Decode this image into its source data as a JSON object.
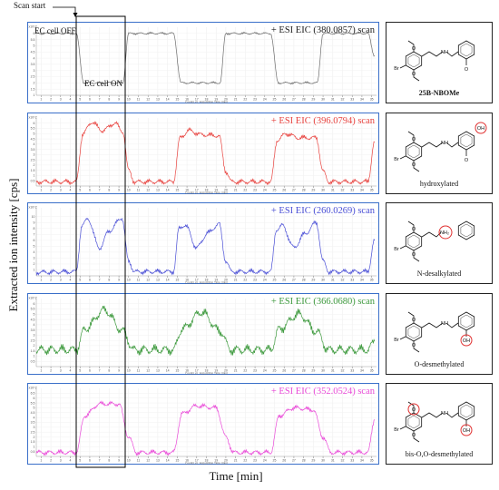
{
  "figure": {
    "ylabel": "Extracted ion intensity [cps]",
    "xlabel": "Time [min]",
    "scan_start_label": "Scan start",
    "ec_off_label": "EC cell OFF",
    "ec_on_label": "EC cell ON",
    "tiny_axis_title": "Counts vs. Acquisition Time (min)",
    "exponent_label": "x10^2"
  },
  "chart_data": [
    {
      "type": "line",
      "title": "+ ESI EIC (380.0857) scan",
      "color": "#6d6d6d",
      "molecule": "25B-NBOMe",
      "molecule_bold": true,
      "x_ticks": [
        1,
        2,
        3,
        4,
        5,
        6,
        7,
        8,
        9,
        10,
        11,
        12,
        13,
        14,
        15,
        16,
        17,
        18,
        19,
        20,
        21,
        22,
        23,
        24,
        25,
        26,
        27,
        28,
        29,
        30,
        31,
        32,
        33,
        34,
        35
      ],
      "xlim": [
        0.5,
        35.5
      ],
      "y_ticks": [
        "1",
        "1.5",
        "2",
        "2.5",
        "3",
        "3.5",
        "4",
        "4.5",
        "5",
        "5.5",
        "6"
      ],
      "ylim": [
        1.0,
        6.5
      ],
      "x": [
        0.5,
        4.6,
        5.4,
        9.4,
        10.0,
        14.6,
        15.4,
        19.4,
        20.0,
        24.6,
        25.4,
        29.4,
        30.0,
        34.6,
        35.3
      ],
      "y": [
        6.0,
        6.0,
        2.0,
        2.0,
        6.0,
        6.0,
        2.0,
        2.0,
        6.0,
        6.0,
        2.0,
        2.0,
        6.0,
        6.0,
        4.2
      ]
    },
    {
      "type": "line",
      "title": "+ ESI EIC (396.0794) scan",
      "color": "#e8433f",
      "molecule": "hydroxylated",
      "x_ticks": [
        1,
        2,
        3,
        4,
        5,
        6,
        7,
        8,
        9,
        10,
        11,
        12,
        13,
        14,
        15,
        16,
        17,
        18,
        19,
        20,
        21,
        22,
        23,
        24,
        25,
        26,
        27,
        28,
        29,
        30,
        31,
        32,
        33,
        34,
        35
      ],
      "xlim": [
        0.5,
        35.5
      ],
      "y_ticks": [
        "0.5",
        "1",
        "1.5",
        "2",
        "2.5",
        "3",
        "3.5",
        "4",
        "4.5",
        "5",
        "5.5",
        "6"
      ],
      "ylim": [
        0.0,
        6.5
      ],
      "x": [
        0.5,
        4.6,
        5.3,
        6.2,
        7.3,
        8.6,
        9.4,
        10.0,
        10.6,
        14.6,
        15.3,
        16.2,
        17.5,
        19.3,
        20.0,
        20.6,
        24.6,
        25.3,
        26.2,
        27.5,
        29.3,
        30.0,
        30.6,
        34.6,
        35.3
      ],
      "y": [
        0.4,
        0.4,
        5.0,
        6.1,
        5.3,
        6.0,
        5.2,
        1.5,
        0.4,
        0.4,
        4.6,
        5.3,
        4.9,
        4.8,
        1.4,
        0.4,
        0.4,
        4.4,
        5.0,
        4.6,
        4.6,
        1.4,
        0.4,
        0.4,
        4.2
      ]
    },
    {
      "type": "line",
      "title": "+ ESI EIC (260.0269) scan",
      "color": "#4a4fd6",
      "molecule": "N-desalkylated",
      "x_ticks": [
        1,
        2,
        3,
        4,
        5,
        6,
        7,
        8,
        9,
        10,
        11,
        12,
        13,
        14,
        15,
        16,
        17,
        18,
        19,
        20,
        21,
        22,
        23,
        24,
        25,
        26,
        27,
        28,
        29,
        30,
        31,
        32,
        33,
        34,
        35
      ],
      "xlim": [
        0.5,
        35.5
      ],
      "y_ticks": [
        "1",
        "2",
        "3",
        "4",
        "5",
        "6",
        "7",
        "8",
        "9",
        "10"
      ],
      "ylim": [
        0.0,
        11.5
      ],
      "x": [
        0.5,
        4.6,
        5.2,
        5.8,
        7.0,
        8.0,
        9.3,
        10.0,
        10.6,
        14.6,
        15.2,
        15.8,
        17.0,
        18.2,
        19.3,
        20.0,
        20.6,
        24.6,
        25.2,
        25.8,
        27.0,
        28.2,
        29.3,
        30.0,
        30.6,
        34.6,
        35.3
      ],
      "y": [
        0.6,
        0.7,
        8.5,
        9.6,
        4.7,
        7.6,
        9.8,
        2.5,
        0.7,
        0.7,
        8.0,
        8.6,
        4.8,
        7.3,
        8.8,
        2.5,
        0.7,
        0.7,
        7.8,
        8.5,
        4.8,
        7.2,
        9.0,
        2.5,
        0.7,
        0.7,
        6.0
      ]
    },
    {
      "type": "line",
      "title": "+ ESI EIC (366.0680) scan",
      "color": "#3e9a3e",
      "molecule": "O-desmethylated",
      "x_ticks": [
        1,
        2,
        3,
        4,
        5,
        6,
        7,
        8,
        9,
        10,
        11,
        12,
        13,
        14,
        15,
        16,
        17,
        18,
        19,
        20,
        21,
        22,
        23,
        24,
        25,
        26,
        27,
        28,
        29,
        30,
        31,
        32,
        33,
        34,
        35
      ],
      "xlim": [
        0.5,
        35.5
      ],
      "y_ticks": [
        "0.5",
        "1",
        "1.5",
        "2",
        "2.5",
        "3",
        "3.5",
        "4",
        "4.5",
        "5",
        "5.5",
        "6"
      ],
      "ylim": [
        0.0,
        6.5
      ],
      "x": [
        0.5,
        4.6,
        5.5,
        7.5,
        9.4,
        10.5,
        14.6,
        15.5,
        17.5,
        19.4,
        20.5,
        24.6,
        25.5,
        27.5,
        29.4,
        30.5,
        34.6,
        35.3
      ],
      "y": [
        1.6,
        1.6,
        3.6,
        5.4,
        3.4,
        1.6,
        1.6,
        3.6,
        5.2,
        3.4,
        1.6,
        1.6,
        3.6,
        5.0,
        3.3,
        1.6,
        1.6,
        2.4
      ]
    },
    {
      "type": "line",
      "title": "+ ESI EIC (352.0524) scan",
      "color": "#e94ad8",
      "molecule": "bis-O,O-desmethylated",
      "x_ticks": [
        1,
        2,
        3,
        4,
        5,
        6,
        7,
        8,
        9,
        10,
        11,
        12,
        13,
        14,
        15,
        16,
        17,
        18,
        19,
        20,
        21,
        22,
        23,
        24,
        25,
        26,
        27,
        28,
        29,
        30,
        31,
        32,
        33,
        34,
        35
      ],
      "xlim": [
        0.5,
        35.5
      ],
      "y_ticks": [
        "0.5",
        "1",
        "1.5",
        "2",
        "2.5",
        "3",
        "3.5",
        "4",
        "4.5",
        "5",
        "5.5",
        "6",
        "6.5"
      ],
      "ylim": [
        0.0,
        7.0
      ],
      "x": [
        0.5,
        4.6,
        5.5,
        7.0,
        9.0,
        10.0,
        10.8,
        14.6,
        15.5,
        17.0,
        19.0,
        20.0,
        20.8,
        24.6,
        25.5,
        27.0,
        29.0,
        30.0,
        30.8,
        34.6,
        35.3
      ],
      "y": [
        0.4,
        0.4,
        4.2,
        5.4,
        5.4,
        2.0,
        0.4,
        0.4,
        4.4,
        5.2,
        5.0,
        2.0,
        0.4,
        0.4,
        4.2,
        5.0,
        4.8,
        2.0,
        0.4,
        0.4,
        3.8
      ]
    }
  ]
}
